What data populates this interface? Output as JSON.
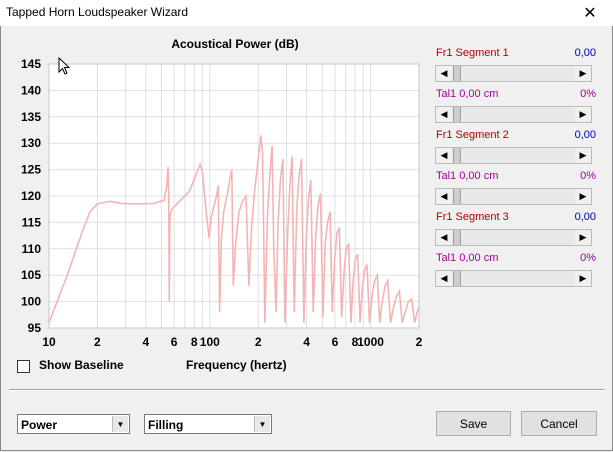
{
  "window": {
    "title": "Tapped Horn Loudspeaker Wizard",
    "close_glyph": "✕"
  },
  "chart_data": {
    "type": "line",
    "title": "Acoustical Power (dB)",
    "xlabel": "Frequency (hertz)",
    "x_scale": "log",
    "xlim": [
      10,
      2000
    ],
    "ylim": [
      95,
      145
    ],
    "y_ticks": [
      "145",
      "140",
      "135",
      "130",
      "125",
      "120",
      "115",
      "110",
      "105",
      "100",
      "95"
    ],
    "x_ticks": [
      {
        "v": 10,
        "label": "10"
      },
      {
        "v": 20,
        "label": "2"
      },
      {
        "v": 40,
        "label": "4"
      },
      {
        "v": 60,
        "label": "6"
      },
      {
        "v": 80,
        "label": "8"
      },
      {
        "v": 100,
        "label": "100"
      },
      {
        "v": 200,
        "label": "2"
      },
      {
        "v": 400,
        "label": "4"
      },
      {
        "v": 600,
        "label": "6"
      },
      {
        "v": 800,
        "label": "8"
      },
      {
        "v": 1000,
        "label": "1000"
      },
      {
        "v": 2000,
        "label": "2"
      }
    ],
    "grid": true,
    "line_color": "#f4b4b4",
    "series": [
      {
        "points": [
          [
            10,
            96
          ],
          [
            13,
            105
          ],
          [
            16,
            113
          ],
          [
            18,
            117
          ],
          [
            20,
            118.5
          ],
          [
            24,
            119
          ],
          [
            28,
            118.6
          ],
          [
            35,
            118.5
          ],
          [
            45,
            118.6
          ],
          [
            52,
            119.2
          ],
          [
            54,
            122
          ],
          [
            55,
            125.5
          ],
          [
            55.5,
            121
          ],
          [
            56,
            100
          ],
          [
            56.5,
            116
          ],
          [
            58,
            117.5
          ],
          [
            65,
            119
          ],
          [
            75,
            121
          ],
          [
            82,
            124
          ],
          [
            87,
            126
          ],
          [
            90,
            124.5
          ],
          [
            95,
            117
          ],
          [
            99,
            112
          ],
          [
            102,
            116
          ],
          [
            106,
            118
          ],
          [
            110,
            120
          ],
          [
            113,
            122
          ],
          [
            115,
            98
          ],
          [
            118,
            112
          ],
          [
            122,
            117
          ],
          [
            128,
            120
          ],
          [
            133,
            123
          ],
          [
            137,
            125
          ],
          [
            140,
            103
          ],
          [
            145,
            111
          ],
          [
            152,
            117
          ],
          [
            160,
            119
          ],
          [
            168,
            120
          ],
          [
            175,
            103
          ],
          [
            182,
            114
          ],
          [
            190,
            121
          ],
          [
            200,
            127
          ],
          [
            208,
            131.5
          ],
          [
            213,
            128
          ],
          [
            220,
            96
          ],
          [
            228,
            116
          ],
          [
            236,
            124
          ],
          [
            244,
            129.5
          ],
          [
            250,
            110
          ],
          [
            258,
            98
          ],
          [
            266,
            115
          ],
          [
            275,
            123
          ],
          [
            285,
            127
          ],
          [
            293,
            96
          ],
          [
            305,
            113
          ],
          [
            315,
            122
          ],
          [
            325,
            127.5
          ],
          [
            335,
            98
          ],
          [
            348,
            118
          ],
          [
            360,
            124
          ],
          [
            372,
            127
          ],
          [
            385,
            96
          ],
          [
            398,
            112
          ],
          [
            412,
            120
          ],
          [
            425,
            123
          ],
          [
            440,
            98
          ],
          [
            455,
            112
          ],
          [
            470,
            118
          ],
          [
            488,
            120.5
          ],
          [
            505,
            97
          ],
          [
            522,
            111
          ],
          [
            540,
            115
          ],
          [
            560,
            117
          ],
          [
            578,
            98
          ],
          [
            598,
            108
          ],
          [
            618,
            113
          ],
          [
            640,
            114
          ],
          [
            660,
            97
          ],
          [
            685,
            106
          ],
          [
            705,
            110
          ],
          [
            730,
            111
          ],
          [
            755,
            96
          ],
          [
            780,
            104
          ],
          [
            805,
            108
          ],
          [
            830,
            109
          ],
          [
            860,
            96
          ],
          [
            890,
            103
          ],
          [
            920,
            106
          ],
          [
            950,
            107
          ],
          [
            985,
            96
          ],
          [
            1020,
            101
          ],
          [
            1060,
            104
          ],
          [
            1100,
            105
          ],
          [
            1140,
            96
          ],
          [
            1180,
            100
          ],
          [
            1230,
            103
          ],
          [
            1280,
            104
          ],
          [
            1330,
            96
          ],
          [
            1390,
            99
          ],
          [
            1450,
            101
          ],
          [
            1510,
            102
          ],
          [
            1570,
            96
          ],
          [
            1640,
            98
          ],
          [
            1720,
            100
          ],
          [
            1800,
            100.5
          ],
          [
            1880,
            96
          ],
          [
            1950,
            98
          ],
          [
            2000,
            99
          ]
        ]
      }
    ]
  },
  "controls": {
    "seg1_label": "Fr1  Segment 1",
    "seg1_value": "0,00",
    "tal1_label": "Tal1  0,00 cm",
    "tal1_value": "0%",
    "seg2_label": "Fr1  Segment 2",
    "seg2_value": "0,00",
    "tal2_label": "Tal1  0,00 cm",
    "tal2_value": "0%",
    "seg3_label": "Fr1  Segment 3",
    "seg3_value": "0,00",
    "tal3_label": "Tal1  0,00 cm",
    "tal3_value": "0%",
    "arrow_left": "◀",
    "arrow_right": "▶"
  },
  "options": {
    "show_baseline_label": "Show Baseline",
    "show_baseline_checked": false
  },
  "bottom": {
    "mode_select": "Power",
    "fill_select": "Filling",
    "dropdown_glyph": "▼",
    "save_label": "Save",
    "cancel_label": "Cancel"
  }
}
